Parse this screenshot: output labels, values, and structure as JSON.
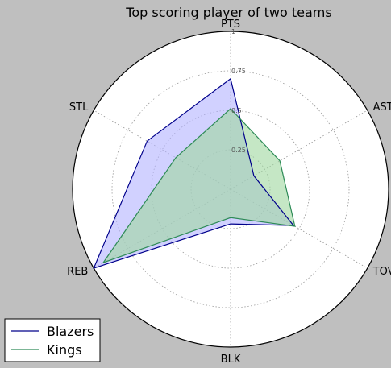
{
  "chart_data": {
    "type": "radar",
    "title": "Top scoring player of two teams",
    "axes": [
      "PTS",
      "AST",
      "TOV",
      "BLK",
      "REB",
      "STL"
    ],
    "rlim": [
      0,
      1
    ],
    "rticks": [
      "0.25",
      "0.5",
      "0.75",
      "1"
    ],
    "grid": true,
    "legend_position": "bottom-left",
    "series": [
      {
        "name": "Blazers",
        "values": [
          0.7,
          0.17,
          0.46,
          0.22,
          1.0,
          0.61
        ],
        "line_color": "#00008b",
        "fill_color": "#b3b3ff"
      },
      {
        "name": "Kings",
        "values": [
          0.51,
          0.36,
          0.47,
          0.18,
          0.93,
          0.4
        ],
        "line_color": "#2e8b57",
        "fill_color": "#9ed79e"
      }
    ]
  }
}
